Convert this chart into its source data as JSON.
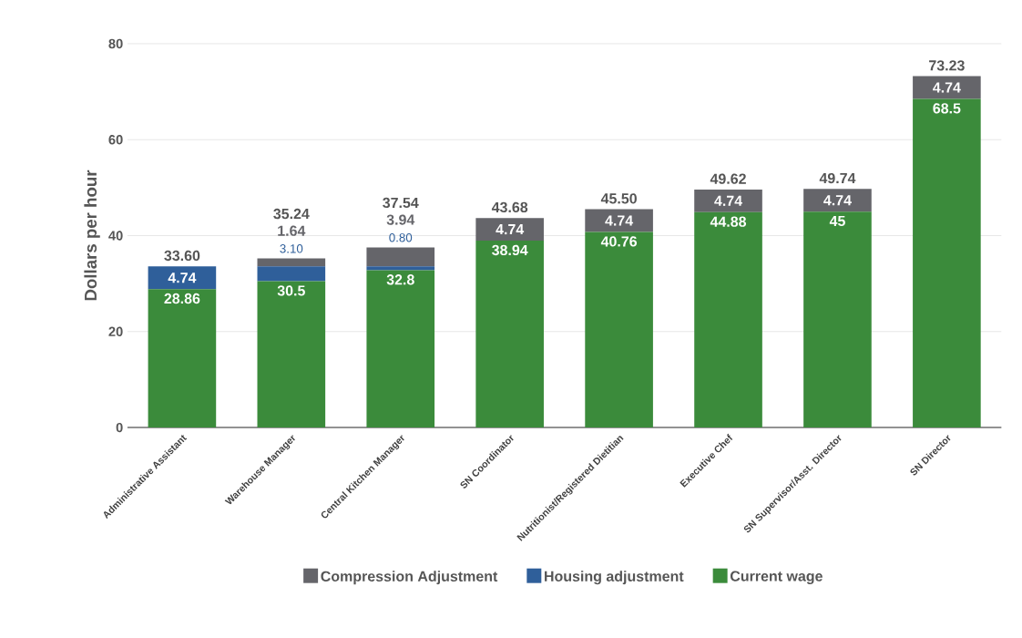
{
  "chart_data": {
    "type": "bar",
    "stacked": true,
    "ylabel": "Dollars per hour",
    "categories": [
      "Administrative Assistant",
      "Warehouse Manager",
      "Central Kitchen Manager",
      "SN Coordinator",
      "Nutritionist/Registered Dietitian",
      "Executive Chef",
      "SN Supervisor/Asst. Director",
      "SN Director"
    ],
    "series": [
      {
        "name": "Current wage",
        "color": "#3b8b3b",
        "values": [
          28.86,
          30.5,
          32.8,
          38.94,
          40.76,
          44.88,
          45,
          68.5
        ],
        "value_labels": [
          "28.86",
          "30.5",
          "32.8",
          "38.94",
          "40.76",
          "44.88",
          "45",
          "68.5"
        ]
      },
      {
        "name": "Housing adjustment",
        "color": "#2f5f9a",
        "values": [
          4.74,
          3.1,
          0.8,
          0,
          0,
          0,
          0,
          0
        ],
        "value_labels": [
          "4.74",
          "3.10",
          "0.80",
          null,
          null,
          null,
          null,
          null
        ]
      },
      {
        "name": "Compression Adjustment",
        "color": "#65656a",
        "values": [
          0,
          1.64,
          3.94,
          4.74,
          4.74,
          4.74,
          4.74,
          4.74
        ],
        "value_labels": [
          null,
          "1.64",
          "3.94",
          "4.74",
          "4.74",
          "4.74",
          "4.74",
          "4.74"
        ]
      }
    ],
    "totals": [
      "33.60",
      "35.24",
      "37.54",
      "43.68",
      "45.50",
      "49.62",
      "49.74",
      "73.23"
    ],
    "ylim": [
      0,
      80
    ],
    "yticks": [
      0,
      20,
      40,
      60,
      80
    ],
    "grid": "y",
    "legend": "bottom"
  }
}
